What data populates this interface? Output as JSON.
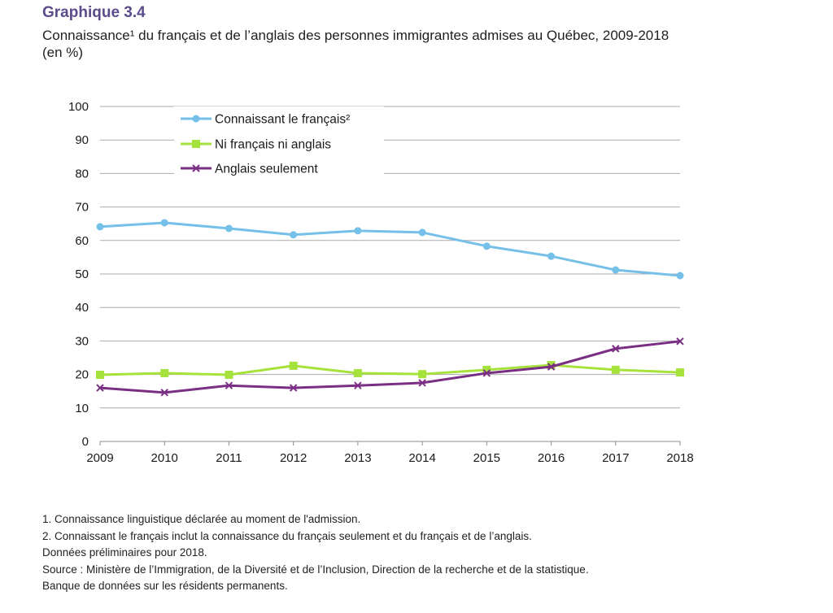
{
  "header": {
    "figure_label": "Graphique 3.4",
    "title_line1": "Connaissance¹ du français et de l’anglais des personnes immigrantes admises au Québec, 2009-2018",
    "title_line2": "(en %)"
  },
  "chart_data": {
    "type": "line",
    "title": "Connaissance¹ du français et de l’anglais des personnes immigrantes admises au Québec, 2009-2018 (en %)",
    "xlabel": "",
    "ylabel": "%",
    "x": [
      "2009",
      "2010",
      "2011",
      "2012",
      "2013",
      "2014",
      "2015",
      "2016",
      "2017",
      "2018"
    ],
    "ylim": [
      0,
      100
    ],
    "yticks": [
      "0",
      "10",
      "20",
      "30",
      "40",
      "50",
      "60",
      "70",
      "80",
      "90",
      "100"
    ],
    "grid": true,
    "legend_position": "top-left",
    "series": [
      {
        "name": "Connaissant le français²",
        "color": "#74c0e8",
        "marker": "circle",
        "values": [
          64.1,
          65.3,
          63.6,
          61.7,
          62.9,
          62.4,
          58.3,
          55.3,
          51.2,
          49.5
        ]
      },
      {
        "name": "Ni français ni anglais",
        "color": "#a6e23c",
        "marker": "square",
        "values": [
          19.9,
          20.4,
          19.9,
          22.6,
          20.4,
          20.1,
          21.4,
          22.8,
          21.4,
          20.6
        ]
      },
      {
        "name": "Anglais seulement",
        "color": "#7b2f84",
        "marker": "x",
        "values": [
          16.0,
          14.6,
          16.7,
          16.0,
          16.7,
          17.5,
          20.4,
          22.3,
          27.7,
          29.9
        ]
      }
    ]
  },
  "notes": [
    "1. Connaissance linguistique déclarée au moment de l'admission.",
    "2. Connaissant le français inclut la connaissance du français seulement et du français et de l’anglais.",
    "Données préliminaires pour 2018.",
    "Source : Ministère de l’Immigration, de la Diversité et de l’Inclusion, Direction de la recherche et de la statistique.",
    "Banque de données sur les résidents permanents."
  ]
}
